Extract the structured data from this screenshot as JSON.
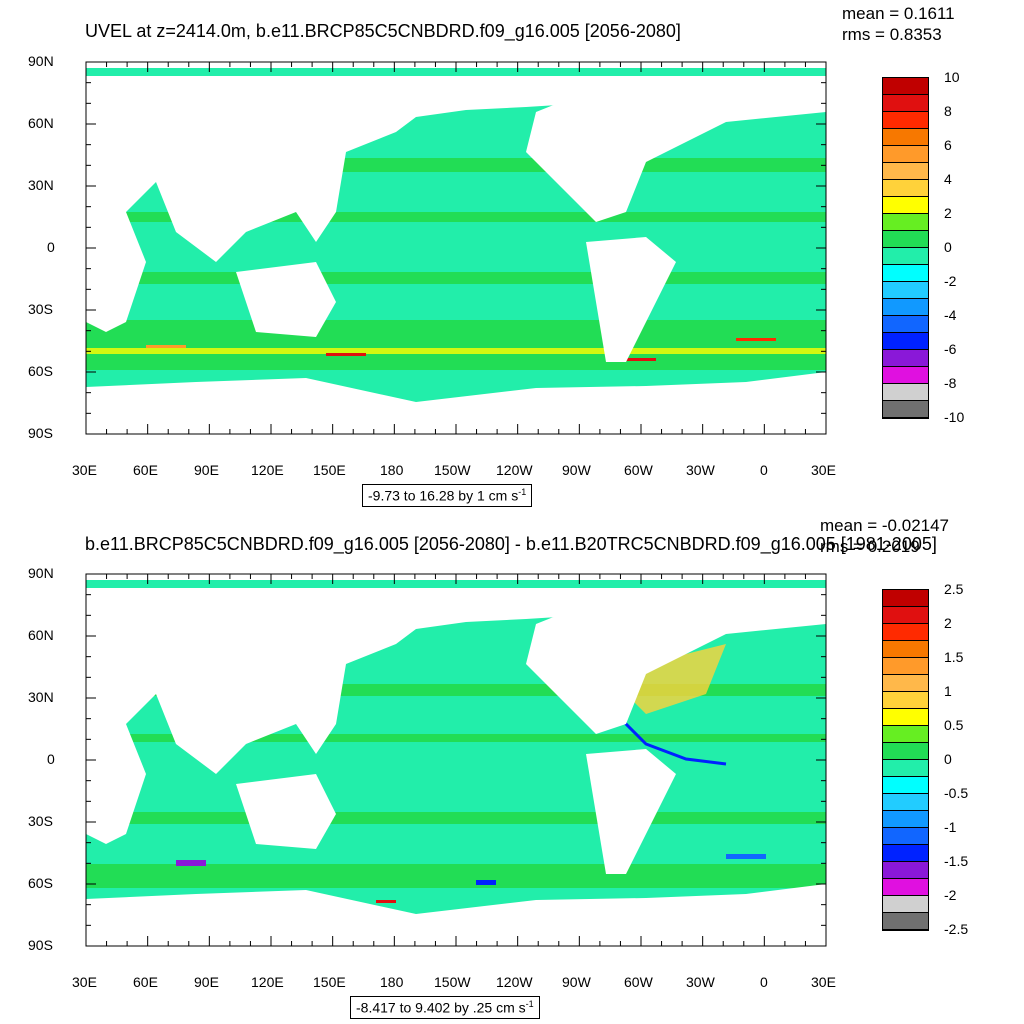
{
  "panels": [
    {
      "title": "UVEL at z=2414.0m, b.e11.BRCP85C5CNBDRD.f09_g16.005 [2056-2080]",
      "mean": "mean = 0.1611",
      "rms": "rms = 0.8353",
      "range_note_prefix": "-9.73 to 16.28 by 1 cm s",
      "range_note_sup": "-1",
      "colorbar_labels": [
        "10",
        "8",
        "6",
        "4",
        "2",
        "0",
        "-2",
        "-4",
        "-6",
        "-8",
        "-10"
      ],
      "colorbar_colors": [
        "#c00000",
        "#e01010",
        "#ff2a00",
        "#f77800",
        "#ff9a2a",
        "#ffb84a",
        "#ffd23a",
        "#ffff00",
        "#66ee22",
        "#22dd55",
        "#22eeaa",
        "#00ffff",
        "#22ccff",
        "#1199ff",
        "#1166ff",
        "#0022ff",
        "#8a18d8",
        "#e010e0",
        "#d0d0d0",
        "#707070"
      ]
    },
    {
      "title": "b.e11.BRCP85C5CNBDRD.f09_g16.005 [2056-2080] - b.e11.B20TRC5CNBDRD.f09_g16.005 [1981-2005]",
      "mean": "mean = -0.02147",
      "rms": "rms = 0.2019",
      "range_note_prefix": "-8.417 to 9.402 by .25 cm s",
      "range_note_sup": "-1",
      "colorbar_labels": [
        "2.5",
        "2",
        "1.5",
        "1",
        "0.5",
        "0",
        "-0.5",
        "-1",
        "-1.5",
        "-2",
        "-2.5"
      ],
      "colorbar_colors": [
        "#c00000",
        "#e01010",
        "#ff2a00",
        "#f77800",
        "#ff9a2a",
        "#ffb84a",
        "#ffd23a",
        "#ffff00",
        "#66ee22",
        "#22dd55",
        "#22eeaa",
        "#00ffff",
        "#22ccff",
        "#1199ff",
        "#1166ff",
        "#0022ff",
        "#8a18d8",
        "#e010e0",
        "#d0d0d0",
        "#707070"
      ]
    }
  ],
  "lat_labels": [
    "90N",
    "60N",
    "30N",
    "0",
    "30S",
    "60S",
    "90S"
  ],
  "lon_labels": [
    "30E",
    "60E",
    "90E",
    "120E",
    "150E",
    "180",
    "150W",
    "120W",
    "90W",
    "60W",
    "30W",
    "0",
    "30E"
  ],
  "colors": {
    "ocean_main": "#22eeaa",
    "ocean_band": "#22dd55"
  }
}
